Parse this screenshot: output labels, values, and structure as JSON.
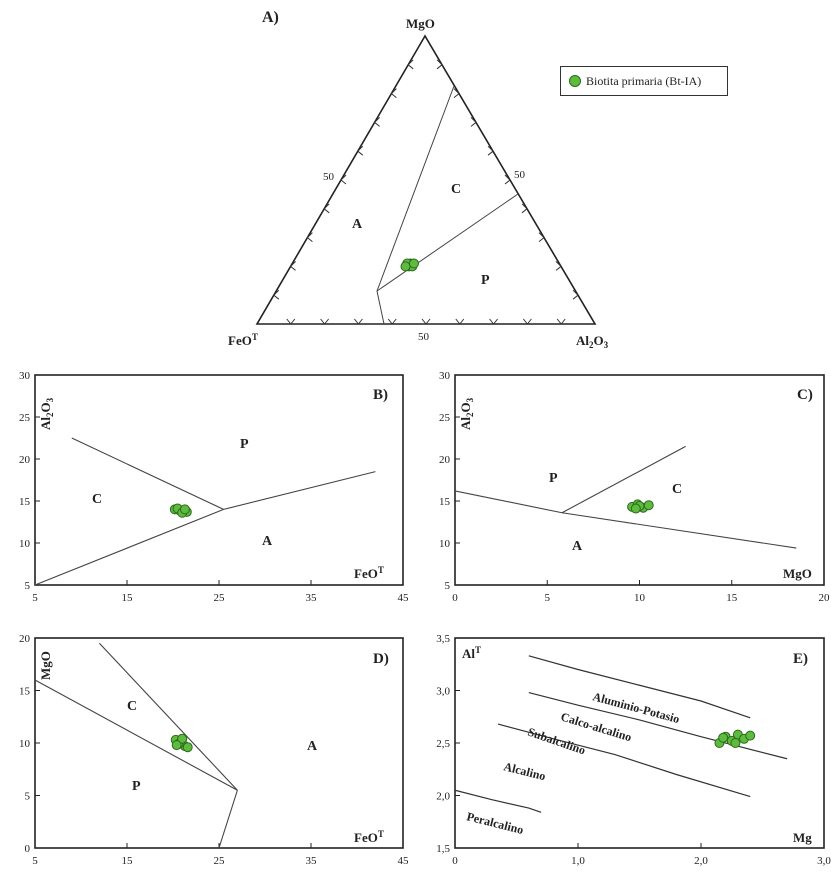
{
  "legend": {
    "label": "Biotita primaria (Bt-IA)",
    "color": "#5dbb3f"
  },
  "panel_a": {
    "title": "A)",
    "apex_top": "MgO",
    "apex_left": "FeOT",
    "apex_right": "Al2O3",
    "tick_50_left": "50",
    "tick_50_right": "50",
    "tick_50_bottom": "50",
    "field_a": "A",
    "field_c": "C",
    "field_p": "P"
  },
  "panel_b": {
    "title": "B)",
    "ylabel": "Al2O3",
    "xlabel": "FeOT",
    "field_c": "C",
    "field_p": "P",
    "field_a": "A"
  },
  "panel_c": {
    "title": "C)",
    "ylabel": "Al2O3",
    "xlabel": "MgO",
    "field_p": "P",
    "field_c": "C",
    "field_a": "A"
  },
  "panel_d": {
    "title": "D)",
    "ylabel": "MgO",
    "xlabel": "FeOT",
    "field_c": "C",
    "field_p": "P",
    "field_a": "A"
  },
  "panel_e": {
    "title": "E)",
    "ylabel": "AlT",
    "xlabel": "Mg",
    "curves": [
      "Aluminio-Potasio",
      "Calco-alcalino",
      "Subalcalino",
      "Alcalino",
      "Peralcalino"
    ]
  },
  "chart_data": [
    {
      "type": "ternary",
      "title": "A)",
      "apices": [
        "MgO",
        "FeOT",
        "Al2O3"
      ],
      "fields": [
        "A",
        "C",
        "P"
      ],
      "series": [
        {
          "name": "Biotita primaria (Bt-IA)",
          "points": [
            {
              "MgO": 20,
              "FeOT": 45,
              "Al2O3": 35
            },
            {
              "MgO": 21,
              "FeOT": 44,
              "Al2O3": 35
            },
            {
              "MgO": 20,
              "FeOT": 44,
              "Al2O3": 36
            },
            {
              "MgO": 21,
              "FeOT": 45,
              "Al2O3": 34
            },
            {
              "MgO": 20,
              "FeOT": 46,
              "Al2O3": 34
            },
            {
              "MgO": 21,
              "FeOT": 43,
              "Al2O3": 36
            }
          ]
        }
      ]
    },
    {
      "type": "scatter",
      "title": "B)",
      "xlabel": "FeOT",
      "ylabel": "Al2O3",
      "xlim": [
        5,
        45
      ],
      "ylim": [
        5,
        30
      ],
      "xticks": [
        5,
        15,
        25,
        35,
        45
      ],
      "yticks": [
        5,
        10,
        15,
        20,
        25,
        30
      ],
      "boundaries": [
        [
          [
            9,
            22.5
          ],
          [
            25.5,
            14
          ]
        ],
        [
          [
            5,
            5
          ],
          [
            25.5,
            14
          ]
        ],
        [
          [
            25.5,
            14
          ],
          [
            42,
            18.5
          ]
        ]
      ],
      "series": [
        {
          "name": "Biotita primaria (Bt-IA)",
          "x": [
            20.2,
            20.7,
            21.1,
            21.5,
            20.5,
            21.0,
            21.3
          ],
          "y": [
            14.0,
            13.9,
            13.8,
            13.7,
            14.1,
            13.6,
            14.0
          ]
        }
      ]
    },
    {
      "type": "scatter",
      "title": "C)",
      "xlabel": "MgO",
      "ylabel": "Al2O3",
      "xlim": [
        0,
        20
      ],
      "ylim": [
        5,
        30
      ],
      "xticks": [
        0,
        5,
        10,
        15,
        20
      ],
      "yticks": [
        5,
        10,
        15,
        20,
        25,
        30
      ],
      "boundaries": [
        [
          [
            0,
            16.2
          ],
          [
            5.8,
            13.6
          ]
        ],
        [
          [
            5.8,
            13.6
          ],
          [
            18.5,
            9.4
          ]
        ],
        [
          [
            5.8,
            13.6
          ],
          [
            12.5,
            21.5
          ]
        ]
      ],
      "series": [
        {
          "name": "Biotita primaria (Bt-IA)",
          "x": [
            9.6,
            9.9,
            10.2,
            10.5,
            10.0,
            9.8
          ],
          "y": [
            14.3,
            14.6,
            14.2,
            14.5,
            14.4,
            14.1
          ]
        }
      ]
    },
    {
      "type": "scatter",
      "title": "D)",
      "xlabel": "FeOT",
      "ylabel": "MgO",
      "xlim": [
        5,
        45
      ],
      "ylim": [
        0,
        20
      ],
      "xticks": [
        5,
        15,
        25,
        35,
        45
      ],
      "yticks": [
        0,
        5,
        10,
        15,
        20
      ],
      "boundaries": [
        [
          [
            5,
            16
          ],
          [
            27,
            5.5
          ]
        ],
        [
          [
            12,
            19.5
          ],
          [
            27,
            5.5
          ]
        ],
        [
          [
            27,
            5.5
          ],
          [
            25,
            0
          ]
        ]
      ],
      "series": [
        {
          "name": "Biotita primaria (Bt-IA)",
          "x": [
            20.3,
            20.8,
            21.3,
            20.6,
            21.0,
            21.6,
            20.4
          ],
          "y": [
            10.3,
            10.0,
            9.7,
            9.9,
            10.4,
            9.6,
            9.8
          ]
        }
      ]
    },
    {
      "type": "scatter",
      "title": "E)",
      "xlabel": "Mg",
      "ylabel": "AlT",
      "xlim": [
        0,
        3.0
      ],
      "ylim": [
        1.5,
        3.5
      ],
      "xticks": [
        "0",
        "1,0",
        "2,0",
        "3,0"
      ],
      "yticks": [
        "1,5",
        "2,0",
        "2,5",
        "3,0",
        "3,5"
      ],
      "xtick_values": [
        0,
        1.0,
        2.0,
        3.0
      ],
      "ytick_values": [
        1.5,
        2.0,
        2.5,
        3.0,
        3.5
      ],
      "curves": [
        {
          "name": "Aluminio-Potasio",
          "points": [
            [
              0.6,
              3.33
            ],
            [
              1.0,
              3.2
            ],
            [
              1.5,
              3.05
            ],
            [
              2.0,
              2.9
            ],
            [
              2.4,
              2.74
            ]
          ]
        },
        {
          "name": "Calco-alcalino",
          "points": [
            [
              0.6,
              2.98
            ],
            [
              1.0,
              2.86
            ],
            [
              1.5,
              2.72
            ],
            [
              2.0,
              2.56
            ],
            [
              2.7,
              2.35
            ]
          ]
        },
        {
          "name": "Subalcalino",
          "points": [
            [
              0.35,
              2.68
            ],
            [
              0.8,
              2.54
            ],
            [
              1.3,
              2.39
            ],
            [
              1.8,
              2.2
            ],
            [
              2.4,
              1.99
            ]
          ]
        },
        {
          "name": "Alcalino",
          "points": []
        },
        {
          "name": "Peralcalino",
          "points": [
            [
              0,
              2.05
            ],
            [
              0.3,
              1.96
            ],
            [
              0.6,
              1.88
            ],
            [
              0.7,
              1.84
            ]
          ]
        }
      ],
      "series": [
        {
          "name": "Biotita primaria (Bt-IA)",
          "x": [
            2.15,
            2.2,
            2.25,
            2.3,
            2.35,
            2.4,
            2.18,
            2.28
          ],
          "y": [
            2.5,
            2.56,
            2.52,
            2.58,
            2.54,
            2.57,
            2.55,
            2.5
          ]
        }
      ]
    }
  ]
}
